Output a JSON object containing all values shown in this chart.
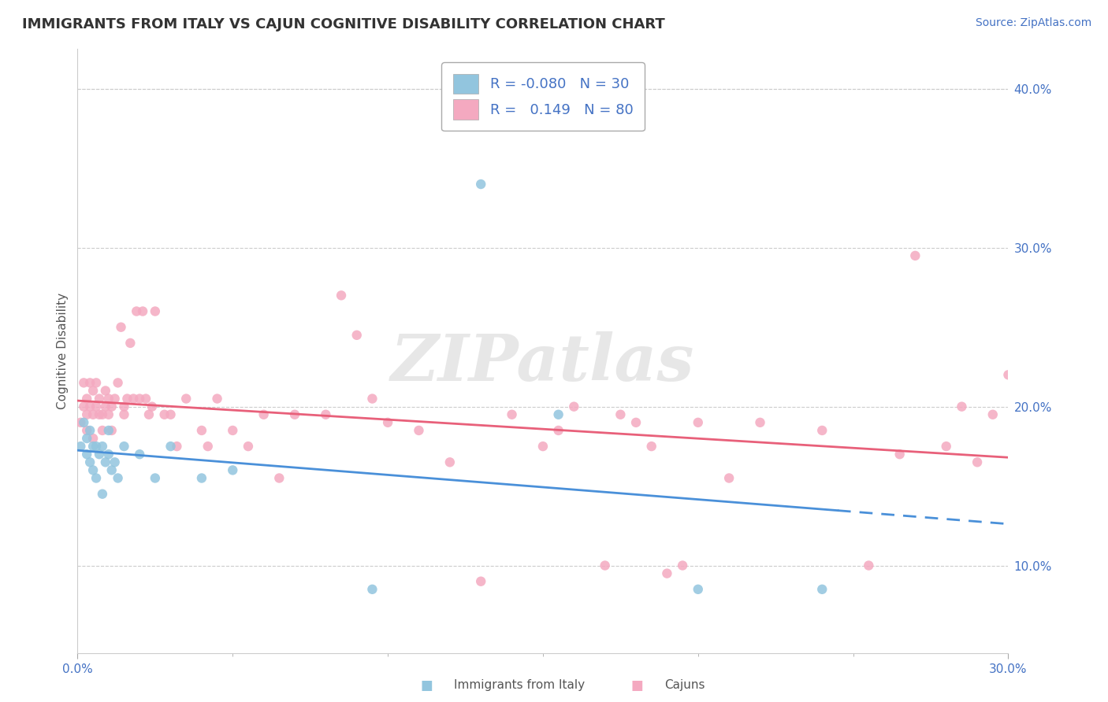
{
  "title": "IMMIGRANTS FROM ITALY VS CAJUN COGNITIVE DISABILITY CORRELATION CHART",
  "source_text": "Source: ZipAtlas.com",
  "ylabel": "Cognitive Disability",
  "xlim": [
    0.0,
    0.3
  ],
  "ylim": [
    0.045,
    0.425
  ],
  "xtick_positions": [
    0.0,
    0.3
  ],
  "xtick_labels": [
    "0.0%",
    "30.0%"
  ],
  "yticks": [
    0.1,
    0.2,
    0.3,
    0.4
  ],
  "ytick_labels": [
    "10.0%",
    "20.0%",
    "30.0%",
    "40.0%"
  ],
  "r_italy": -0.08,
  "n_italy": 30,
  "r_cajun": 0.149,
  "n_cajun": 80,
  "color_italy": "#92c5de",
  "color_cajun": "#f4a9c0",
  "trendline_italy_solid": "#4a90d9",
  "trendline_cajun": "#e8607a",
  "watermark": "ZIPatlas",
  "watermark_color": "#d0d0d0",
  "background_color": "#ffffff",
  "grid_color": "#cccccc",
  "title_color": "#333333",
  "legend_text_color": "#4472c4",
  "axis_label_color": "#4472c4",
  "italy_x": [
    0.001,
    0.002,
    0.003,
    0.003,
    0.004,
    0.004,
    0.005,
    0.005,
    0.006,
    0.006,
    0.007,
    0.008,
    0.008,
    0.009,
    0.01,
    0.01,
    0.011,
    0.012,
    0.013,
    0.015,
    0.02,
    0.025,
    0.03,
    0.04,
    0.05,
    0.095,
    0.13,
    0.155,
    0.2,
    0.24
  ],
  "italy_y": [
    0.175,
    0.19,
    0.18,
    0.17,
    0.165,
    0.185,
    0.175,
    0.16,
    0.175,
    0.155,
    0.17,
    0.175,
    0.145,
    0.165,
    0.17,
    0.185,
    0.16,
    0.165,
    0.155,
    0.175,
    0.17,
    0.155,
    0.175,
    0.155,
    0.16,
    0.085,
    0.34,
    0.195,
    0.085,
    0.085
  ],
  "cajun_x": [
    0.001,
    0.002,
    0.002,
    0.003,
    0.003,
    0.003,
    0.004,
    0.004,
    0.005,
    0.005,
    0.005,
    0.006,
    0.006,
    0.007,
    0.007,
    0.008,
    0.008,
    0.009,
    0.009,
    0.01,
    0.01,
    0.011,
    0.011,
    0.012,
    0.013,
    0.014,
    0.015,
    0.015,
    0.016,
    0.017,
    0.018,
    0.019,
    0.02,
    0.021,
    0.022,
    0.023,
    0.024,
    0.025,
    0.028,
    0.03,
    0.032,
    0.035,
    0.04,
    0.042,
    0.045,
    0.05,
    0.055,
    0.06,
    0.065,
    0.07,
    0.08,
    0.085,
    0.09,
    0.095,
    0.1,
    0.11,
    0.12,
    0.13,
    0.14,
    0.15,
    0.155,
    0.16,
    0.17,
    0.175,
    0.18,
    0.185,
    0.19,
    0.195,
    0.2,
    0.21,
    0.22,
    0.24,
    0.255,
    0.265,
    0.27,
    0.28,
    0.285,
    0.29,
    0.295,
    0.3
  ],
  "cajun_y": [
    0.19,
    0.2,
    0.215,
    0.195,
    0.185,
    0.205,
    0.2,
    0.215,
    0.195,
    0.21,
    0.18,
    0.2,
    0.215,
    0.195,
    0.205,
    0.195,
    0.185,
    0.2,
    0.21,
    0.195,
    0.205,
    0.185,
    0.2,
    0.205,
    0.215,
    0.25,
    0.2,
    0.195,
    0.205,
    0.24,
    0.205,
    0.26,
    0.205,
    0.26,
    0.205,
    0.195,
    0.2,
    0.26,
    0.195,
    0.195,
    0.175,
    0.205,
    0.185,
    0.175,
    0.205,
    0.185,
    0.175,
    0.195,
    0.155,
    0.195,
    0.195,
    0.27,
    0.245,
    0.205,
    0.19,
    0.185,
    0.165,
    0.09,
    0.195,
    0.175,
    0.185,
    0.2,
    0.1,
    0.195,
    0.19,
    0.175,
    0.095,
    0.1,
    0.19,
    0.155,
    0.19,
    0.185,
    0.1,
    0.17,
    0.295,
    0.175,
    0.2,
    0.165,
    0.195,
    0.22
  ]
}
